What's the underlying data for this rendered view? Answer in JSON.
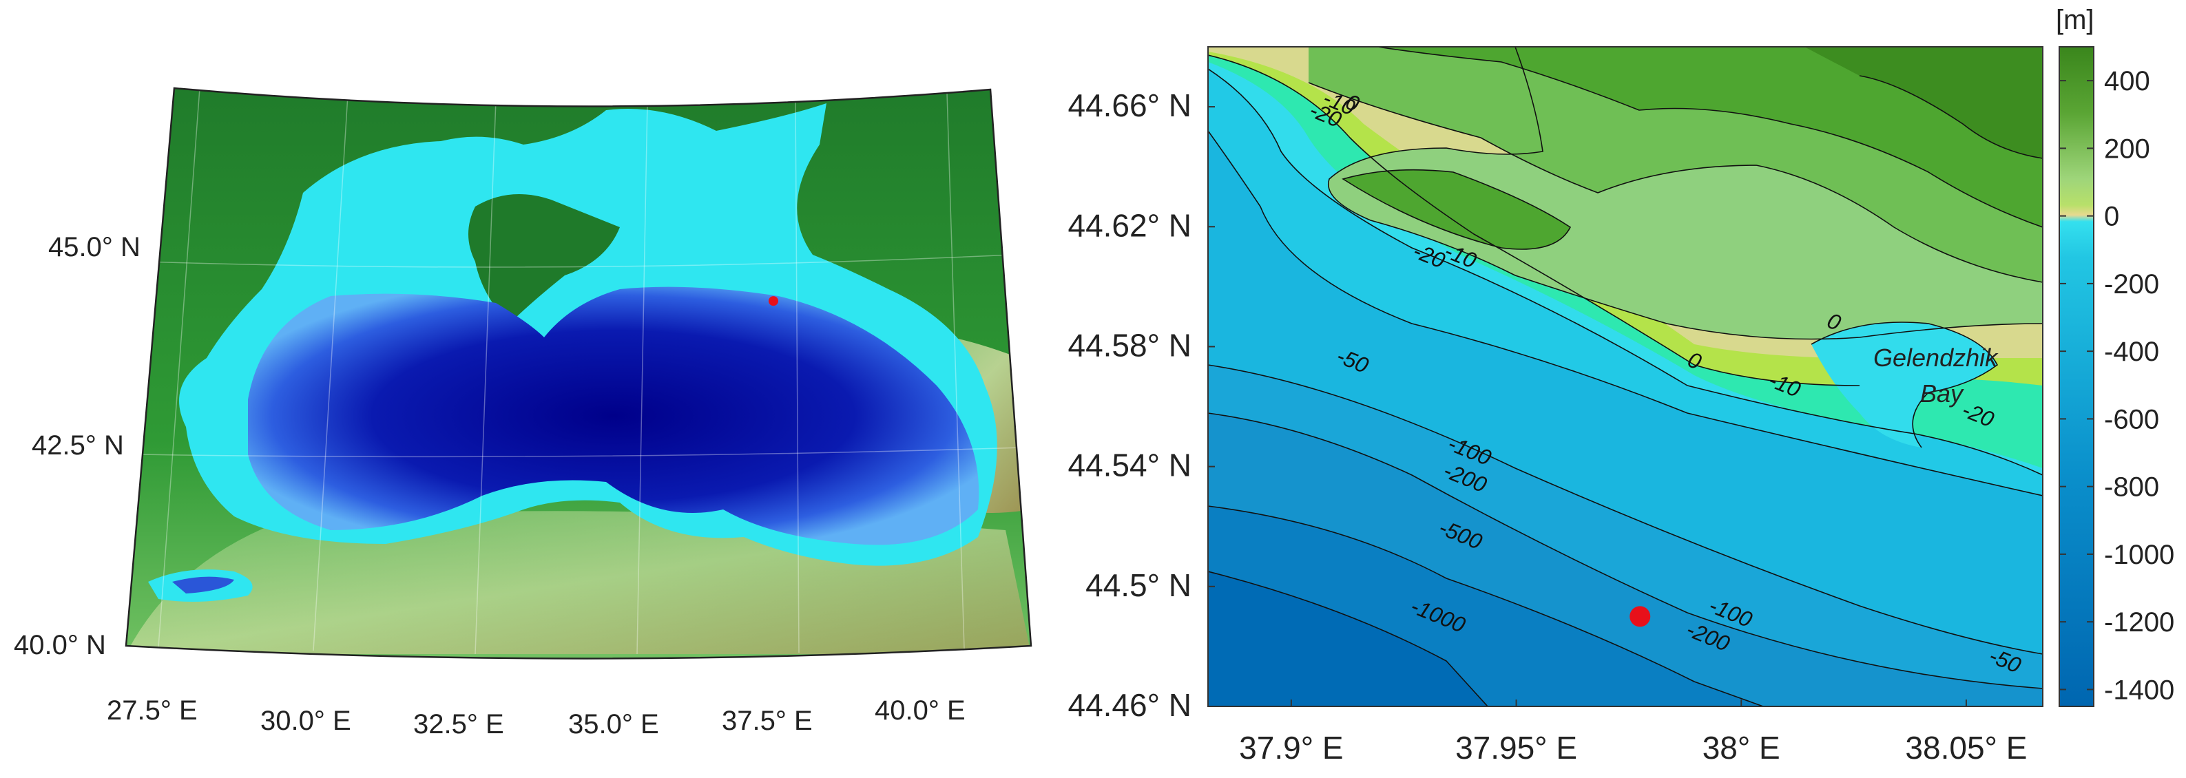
{
  "left_map": {
    "lat_labels": [
      {
        "value": 45.0,
        "text": "45.0° N"
      },
      {
        "value": 42.5,
        "text": "42.5° N"
      },
      {
        "value": 40.0,
        "text": "40.0° N"
      }
    ],
    "lon_labels": [
      {
        "value": 27.5,
        "text": "27.5° E"
      },
      {
        "value": 30.0,
        "text": "30.0° E"
      },
      {
        "value": 32.5,
        "text": "32.5° E"
      },
      {
        "value": 35.0,
        "text": "35.0° E"
      },
      {
        "value": 37.5,
        "text": "37.5° E"
      },
      {
        "value": 40.0,
        "text": "40.0° E"
      }
    ],
    "marker": {
      "lon": 37.9775,
      "lat": 44.49,
      "color": "#e8101a"
    }
  },
  "right_map": {
    "lat_labels": [
      {
        "value": 44.66,
        "text": "44.66° N"
      },
      {
        "value": 44.62,
        "text": "44.62° N"
      },
      {
        "value": 44.58,
        "text": "44.58° N"
      },
      {
        "value": 44.54,
        "text": "44.54° N"
      },
      {
        "value": 44.5,
        "text": "44.5° N"
      },
      {
        "value": 44.46,
        "text": "44.46° N"
      }
    ],
    "lon_labels": [
      {
        "value": 37.9,
        "text": "37.9° E"
      },
      {
        "value": 37.95,
        "text": "37.95° E"
      },
      {
        "value": 38.0,
        "text": "38° E"
      },
      {
        "value": 38.05,
        "text": "38.05° E"
      }
    ],
    "contour_labels": [
      {
        "text": "-20",
        "lon": 37.907,
        "lat": 44.655
      },
      {
        "text": "-10",
        "lon": 37.91,
        "lat": 44.659
      },
      {
        "text": "0",
        "lon": 37.913,
        "lat": 44.659
      },
      {
        "text": "-20",
        "lon": 37.93,
        "lat": 44.608
      },
      {
        "text": "-10",
        "lon": 37.937,
        "lat": 44.608
      },
      {
        "text": "0",
        "lon": 38.02,
        "lat": 44.586
      },
      {
        "text": "0",
        "lon": 37.989,
        "lat": 44.573
      },
      {
        "text": "-10",
        "lon": 38.009,
        "lat": 44.565
      },
      {
        "text": "-20",
        "lon": 38.052,
        "lat": 44.555
      },
      {
        "text": "-50",
        "lon": 37.913,
        "lat": 44.573
      },
      {
        "text": "-100",
        "lon": 37.939,
        "lat": 44.543
      },
      {
        "text": "-200",
        "lon": 37.938,
        "lat": 44.534
      },
      {
        "text": "-500",
        "lon": 37.937,
        "lat": 44.515
      },
      {
        "text": "-1000",
        "lon": 37.932,
        "lat": 44.488
      },
      {
        "text": "-100",
        "lon": 37.997,
        "lat": 44.489
      },
      {
        "text": "-200",
        "lon": 37.992,
        "lat": 44.481
      },
      {
        "text": "-50",
        "lon": 38.058,
        "lat": 44.473
      }
    ],
    "place_label_line1": "Gelendzhik",
    "place_label_line2": "Bay",
    "marker": {
      "lon": 37.9775,
      "lat": 44.49,
      "color": "#e8101a"
    }
  },
  "colorbar": {
    "unit": "[m]",
    "min": -1450,
    "max": 500,
    "ticks": [
      {
        "value": 400,
        "text": "400"
      },
      {
        "value": 200,
        "text": "200"
      },
      {
        "value": 0,
        "text": "0"
      },
      {
        "value": -200,
        "text": "-200"
      },
      {
        "value": -400,
        "text": "-400"
      },
      {
        "value": -600,
        "text": "-600"
      },
      {
        "value": -800,
        "text": "-800"
      },
      {
        "value": -1000,
        "text": "-1000"
      },
      {
        "value": -1200,
        "text": "-1200"
      },
      {
        "value": -1400,
        "text": "-1400"
      }
    ],
    "colors": {
      "deep": "#006fb7",
      "mid": "#1aa0d2",
      "shallow": "#2fd8ea",
      "coast": "#c9e6a3",
      "land": "#3f8f22"
    }
  }
}
